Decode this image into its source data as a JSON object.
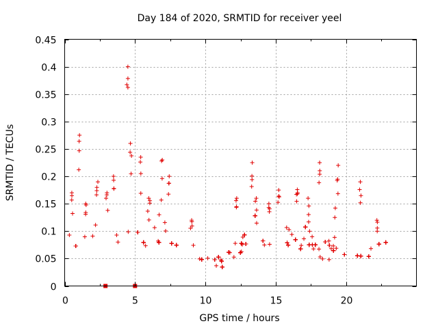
{
  "chart_data": {
    "type": "scatter",
    "title": "Day 184 of 2020, SRMTID for receiver yeel",
    "xlabel": "GPS time / hours",
    "ylabel": "SRMTID / TECUs",
    "xlim": [
      0,
      25
    ],
    "ylim": [
      0,
      0.45
    ],
    "xticks": [
      0,
      5,
      10,
      15,
      20
    ],
    "xtick_labels": [
      "0",
      "5",
      "10",
      "15",
      "20"
    ],
    "yticks": [
      0,
      0.05,
      0.1,
      0.15,
      0.2,
      0.25,
      0.3,
      0.35,
      0.4,
      0.45
    ],
    "ytick_labels": [
      "0",
      "0.05",
      "0.1",
      "0.15",
      "0.2",
      "0.25",
      "0.3",
      "0.35",
      "0.4",
      "0.45"
    ],
    "grid": true,
    "marker": "+",
    "color": "#e00000",
    "series": [
      {
        "name": "SRMTID",
        "x_range": [
          0,
          22.9
        ],
        "baseline_profile": [
          {
            "x": 0.0,
            "y": 0.07
          },
          {
            "x": 1.0,
            "y": 0.09
          },
          {
            "x": 2.0,
            "y": 0.1
          },
          {
            "x": 3.0,
            "y": 0.1
          },
          {
            "x": 4.0,
            "y": 0.09
          },
          {
            "x": 5.0,
            "y": 0.09
          },
          {
            "x": 6.0,
            "y": 0.08
          },
          {
            "x": 7.0,
            "y": 0.09
          },
          {
            "x": 8.0,
            "y": 0.07
          },
          {
            "x": 9.0,
            "y": 0.06
          },
          {
            "x": 10.0,
            "y": 0.05
          },
          {
            "x": 11.0,
            "y": 0.04
          },
          {
            "x": 12.0,
            "y": 0.06
          },
          {
            "x": 13.0,
            "y": 0.08
          },
          {
            "x": 14.0,
            "y": 0.07
          },
          {
            "x": 15.0,
            "y": 0.08
          },
          {
            "x": 16.0,
            "y": 0.08
          },
          {
            "x": 17.0,
            "y": 0.08
          },
          {
            "x": 18.0,
            "y": 0.07
          },
          {
            "x": 19.0,
            "y": 0.07
          },
          {
            "x": 20.0,
            "y": 0.06
          },
          {
            "x": 21.0,
            "y": 0.05
          },
          {
            "x": 22.0,
            "y": 0.06
          },
          {
            "x": 22.9,
            "y": 0.07
          }
        ],
        "peaks": [
          {
            "x": 0.5,
            "y": 0.17
          },
          {
            "x": 1.0,
            "y": 0.275
          },
          {
            "x": 1.5,
            "y": 0.15
          },
          {
            "x": 2.3,
            "y": 0.19
          },
          {
            "x": 3.0,
            "y": 0.17
          },
          {
            "x": 3.5,
            "y": 0.2
          },
          {
            "x": 4.45,
            "y": 0.4
          },
          {
            "x": 4.7,
            "y": 0.26
          },
          {
            "x": 5.4,
            "y": 0.235
          },
          {
            "x": 6.0,
            "y": 0.16
          },
          {
            "x": 6.9,
            "y": 0.23
          },
          {
            "x": 7.4,
            "y": 0.2
          },
          {
            "x": 9.0,
            "y": 0.12
          },
          {
            "x": 12.2,
            "y": 0.16
          },
          {
            "x": 13.3,
            "y": 0.225
          },
          {
            "x": 13.6,
            "y": 0.16
          },
          {
            "x": 14.5,
            "y": 0.15
          },
          {
            "x": 15.2,
            "y": 0.175
          },
          {
            "x": 16.5,
            "y": 0.17
          },
          {
            "x": 17.3,
            "y": 0.16
          },
          {
            "x": 18.1,
            "y": 0.225
          },
          {
            "x": 19.4,
            "y": 0.22
          },
          {
            "x": 21.0,
            "y": 0.19
          },
          {
            "x": 22.2,
            "y": 0.12
          }
        ],
        "outliers": [
          {
            "x": 2.9,
            "y": 0.0
          },
          {
            "x": 5.0,
            "y": 0.0
          }
        ]
      }
    ]
  }
}
